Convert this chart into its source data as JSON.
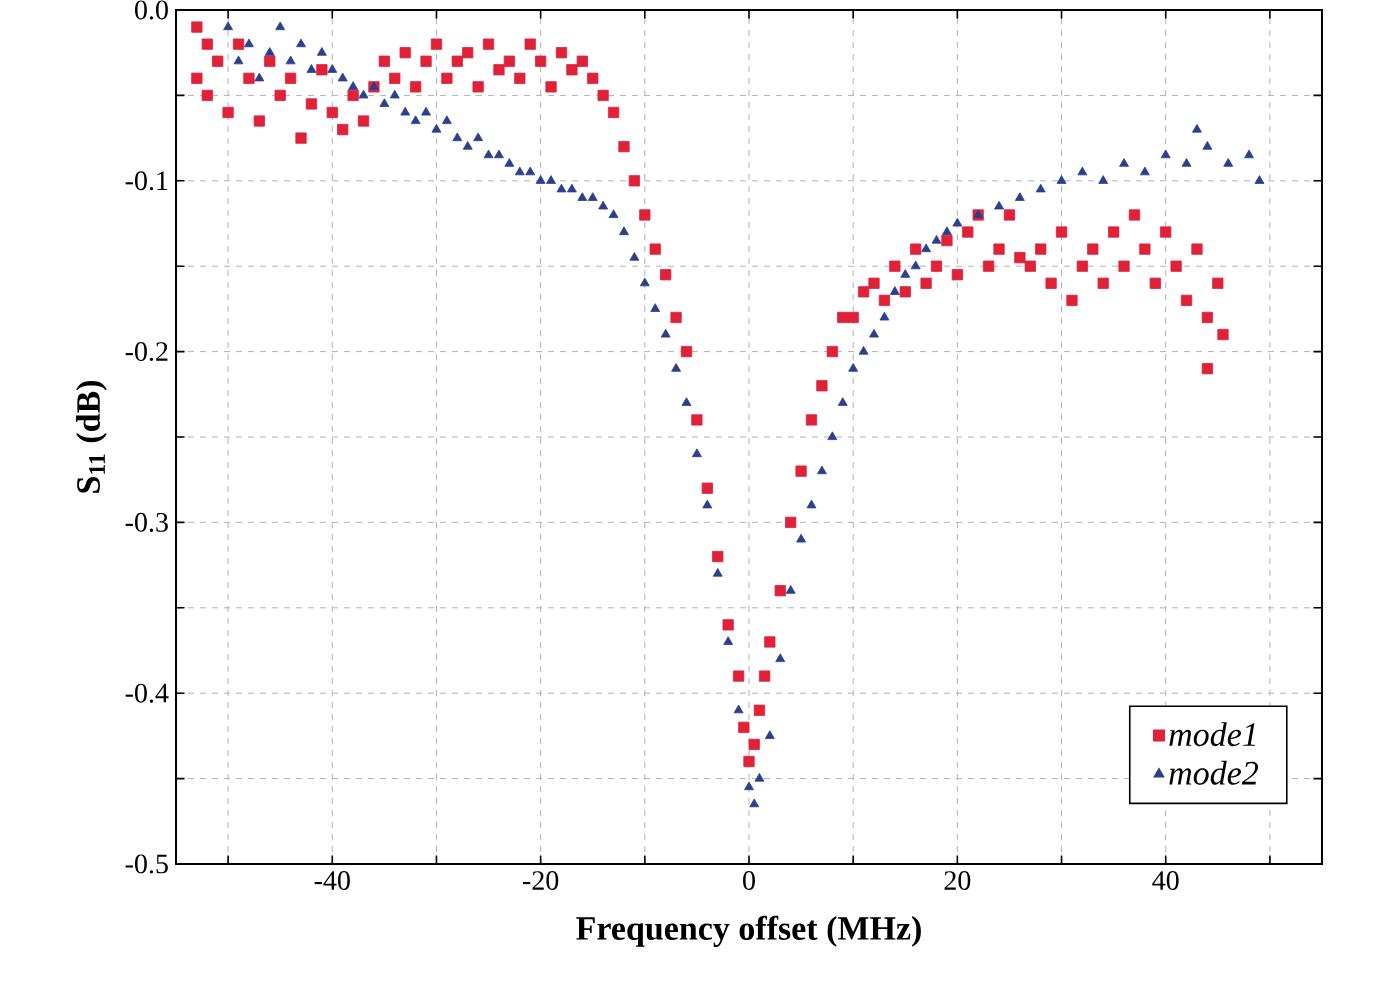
{
  "chart_data": {
    "type": "scatter",
    "xlabel": "Frequency offset (MHz)",
    "ylabel": "S$_{11}$ (dB)",
    "xlim": [
      -55,
      55
    ],
    "ylim": [
      -0.5,
      0
    ],
    "xticks": [
      {
        "value": -50,
        "label": null
      },
      -40,
      {
        "value": -30,
        "label": null
      },
      -20,
      {
        "value": -10,
        "label": null
      },
      0,
      {
        "value": 10,
        "label": null
      },
      20,
      {
        "value": 30,
        "label": null
      },
      40,
      {
        "value": 50,
        "label": null
      }
    ],
    "yticks": [
      -0.5,
      {
        "value": -0.45,
        "label": null
      },
      -0.4,
      {
        "value": -0.35,
        "label": null
      },
      -0.3,
      {
        "value": -0.25,
        "label": null
      },
      -0.2,
      {
        "value": -0.15,
        "label": null
      },
      -0.1,
      {
        "value": -0.05,
        "label": null
      },
      {
        "value": 0,
        "label": "0.0"
      }
    ],
    "grid": true,
    "legend": "bottom right",
    "series": [
      {
        "name": "mode1",
        "color": "#e0213a",
        "marker": "square",
        "x": [
          -53,
          -53,
          -52,
          -52,
          -51,
          -50,
          -49,
          -48,
          -47,
          -46,
          -45,
          -44,
          -43,
          -42,
          -41,
          -40,
          -39,
          -38,
          -37,
          -36,
          -35,
          -34,
          -33,
          -32,
          -31,
          -30,
          -29,
          -28,
          -27,
          -26,
          -25,
          -24,
          -23,
          -22,
          -21,
          -20,
          -19,
          -18,
          -17,
          -16,
          -15,
          -14,
          -13,
          -12,
          -11,
          -10,
          -9,
          -8,
          -7,
          -6,
          -5,
          -4,
          -3,
          -2,
          -1,
          -0.5,
          0,
          0.5,
          1,
          1.5,
          2,
          3,
          4,
          5,
          6,
          7,
          8,
          9,
          10,
          11,
          12,
          13,
          14,
          15,
          16,
          17,
          18,
          19,
          20,
          21,
          22,
          23,
          24,
          25,
          26,
          27,
          28,
          29,
          30,
          31,
          32,
          33,
          34,
          35,
          36,
          37,
          38,
          39,
          40,
          41,
          42,
          43,
          44,
          45,
          45.5,
          44
        ],
        "values": [
          -0.01,
          -0.04,
          -0.02,
          -0.05,
          -0.03,
          -0.06,
          -0.02,
          -0.04,
          -0.065,
          -0.03,
          -0.05,
          -0.04,
          -0.075,
          -0.055,
          -0.035,
          -0.06,
          -0.07,
          -0.05,
          -0.065,
          -0.045,
          -0.03,
          -0.04,
          -0.025,
          -0.045,
          -0.03,
          -0.02,
          -0.04,
          -0.03,
          -0.025,
          -0.045,
          -0.02,
          -0.035,
          -0.03,
          -0.04,
          -0.02,
          -0.03,
          -0.045,
          -0.025,
          -0.035,
          -0.03,
          -0.04,
          -0.05,
          -0.06,
          -0.08,
          -0.1,
          -0.12,
          -0.14,
          -0.155,
          -0.18,
          -0.2,
          -0.24,
          -0.28,
          -0.32,
          -0.36,
          -0.39,
          -0.42,
          -0.44,
          -0.43,
          -0.41,
          -0.39,
          -0.37,
          -0.34,
          -0.3,
          -0.27,
          -0.24,
          -0.22,
          -0.2,
          -0.18,
          -0.18,
          -0.165,
          -0.16,
          -0.17,
          -0.15,
          -0.165,
          -0.14,
          -0.16,
          -0.15,
          -0.135,
          -0.155,
          -0.13,
          -0.12,
          -0.15,
          -0.14,
          -0.12,
          -0.145,
          -0.15,
          -0.14,
          -0.16,
          -0.13,
          -0.17,
          -0.15,
          -0.14,
          -0.16,
          -0.13,
          -0.15,
          -0.12,
          -0.14,
          -0.16,
          -0.13,
          -0.15,
          -0.17,
          -0.14,
          -0.18,
          -0.16,
          -0.19,
          -0.21
        ]
      },
      {
        "name": "mode2",
        "color": "#2b3f8c",
        "marker": "triangle",
        "x": [
          -50,
          -49,
          -48,
          -47,
          -46,
          -45,
          -44,
          -43,
          -42,
          -41,
          -40,
          -39,
          -38,
          -37,
          -36,
          -35,
          -34,
          -33,
          -32,
          -31,
          -30,
          -29,
          -28,
          -27,
          -26,
          -25,
          -24,
          -23,
          -22,
          -21,
          -20,
          -19,
          -18,
          -17,
          -16,
          -15,
          -14,
          -13,
          -12,
          -11,
          -10,
          -9,
          -8,
          -7,
          -6,
          -5,
          -4,
          -3,
          -2,
          -1,
          0,
          0.5,
          1,
          2,
          3,
          4,
          5,
          6,
          7,
          8,
          9,
          10,
          11,
          12,
          13,
          14,
          15,
          16,
          17,
          18,
          19,
          20,
          22,
          24,
          26,
          28,
          30,
          32,
          34,
          36,
          38,
          40,
          42,
          44,
          46,
          48,
          49,
          43
        ],
        "values": [
          -0.01,
          -0.03,
          -0.02,
          -0.04,
          -0.025,
          -0.01,
          -0.03,
          -0.02,
          -0.035,
          -0.025,
          -0.035,
          -0.04,
          -0.045,
          -0.05,
          -0.045,
          -0.055,
          -0.05,
          -0.06,
          -0.065,
          -0.06,
          -0.07,
          -0.065,
          -0.075,
          -0.08,
          -0.075,
          -0.085,
          -0.085,
          -0.09,
          -0.095,
          -0.095,
          -0.1,
          -0.1,
          -0.105,
          -0.105,
          -0.11,
          -0.11,
          -0.115,
          -0.12,
          -0.13,
          -0.145,
          -0.16,
          -0.175,
          -0.19,
          -0.21,
          -0.23,
          -0.26,
          -0.29,
          -0.33,
          -0.37,
          -0.41,
          -0.455,
          -0.465,
          -0.45,
          -0.425,
          -0.38,
          -0.34,
          -0.31,
          -0.29,
          -0.27,
          -0.25,
          -0.23,
          -0.21,
          -0.2,
          -0.19,
          -0.18,
          -0.165,
          -0.155,
          -0.15,
          -0.14,
          -0.135,
          -0.13,
          -0.125,
          -0.12,
          -0.115,
          -0.11,
          -0.105,
          -0.1,
          -0.095,
          -0.1,
          -0.09,
          -0.095,
          -0.085,
          -0.09,
          -0.08,
          -0.09,
          -0.085,
          -0.1,
          -0.07
        ]
      }
    ]
  }
}
